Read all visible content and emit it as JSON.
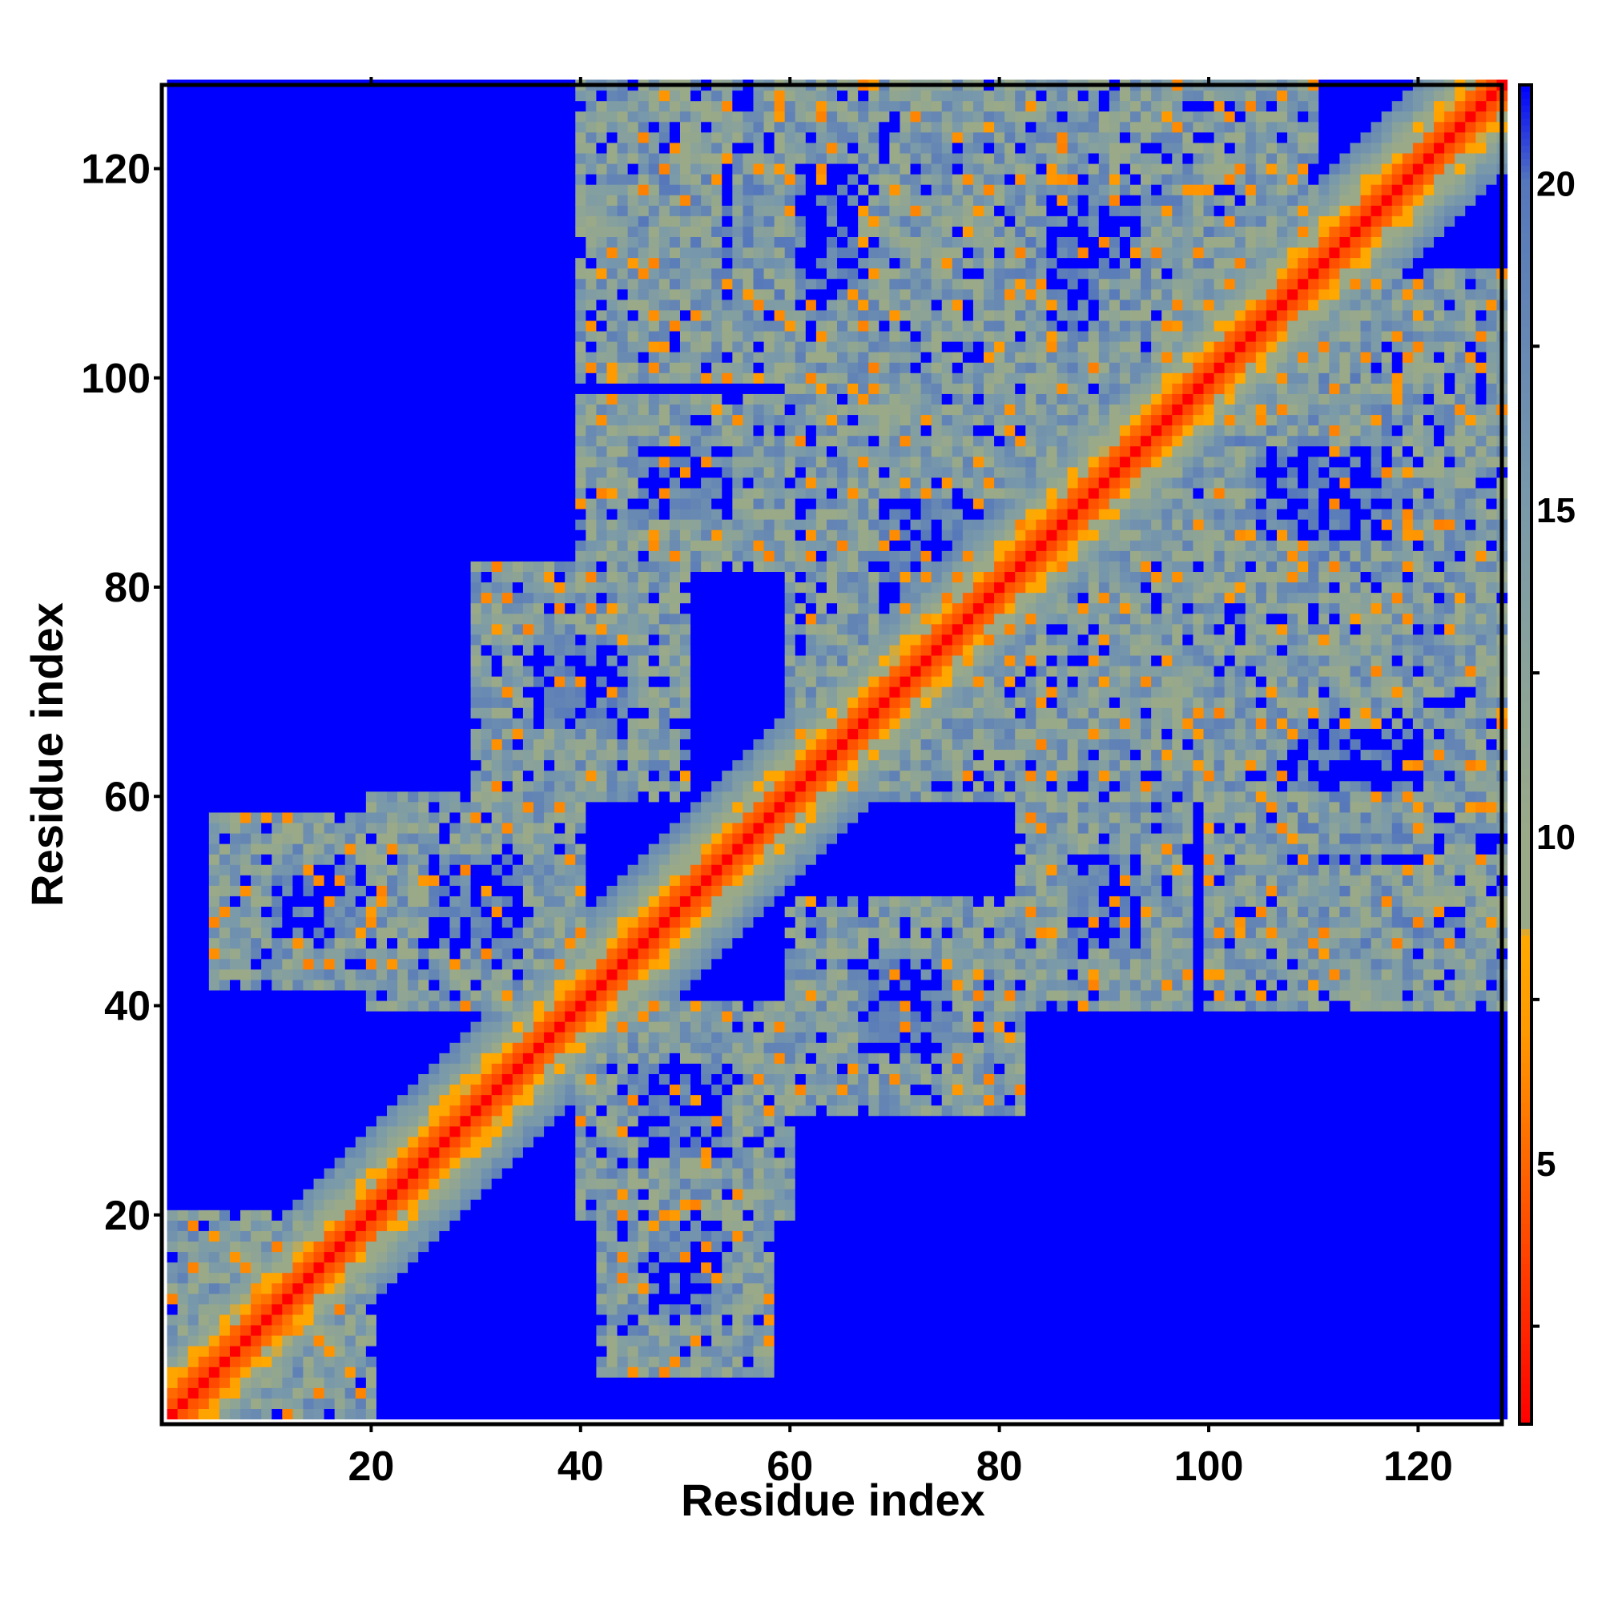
{
  "chart_data": {
    "type": "heatmap",
    "title": "",
    "xlabel": "Residue index",
    "ylabel": "Residue index",
    "xlim": [
      1,
      128
    ],
    "ylim": [
      1,
      128
    ],
    "xticks": [
      "20",
      "40",
      "60",
      "80",
      "100",
      "120"
    ],
    "yticks": [
      "20",
      "40",
      "60",
      "80",
      "100",
      "120"
    ],
    "colorbar": {
      "ticks": [
        "5",
        "10",
        "15",
        "20"
      ],
      "range": [
        1,
        21.5
      ],
      "stops": [
        {
          "value": 1,
          "color": "#ff0000"
        },
        {
          "value": 3,
          "color": "#ff3300"
        },
        {
          "value": 5,
          "color": "#ff6600"
        },
        {
          "value": 7,
          "color": "#ff9900"
        },
        {
          "value": 8.5,
          "color": "#ffaa00"
        },
        {
          "value": 8.6,
          "color": "#9aaa88"
        },
        {
          "value": 10,
          "color": "#9aaa88"
        },
        {
          "value": 15,
          "color": "#7a9aaa"
        },
        {
          "value": 20,
          "color": "#5577bb"
        },
        {
          "value": 21.5,
          "color": "#0000ff"
        }
      ]
    },
    "matrix_description": "Symmetric residue-residue distance map (Angstrom-like scale 1-21.5), minimum along diagonal, saturated blue for values above ~20",
    "contact_regions": [
      {
        "i": [
          1,
          20
        ],
        "j": [
          1,
          20
        ]
      },
      {
        "i": [
          5,
          25
        ],
        "j": [
          42,
          58
        ]
      },
      {
        "i": [
          20,
          40
        ],
        "j": [
          40,
          60
        ]
      },
      {
        "i": [
          30,
          50
        ],
        "j": [
          60,
          82
        ]
      },
      {
        "i": [
          40,
          60
        ],
        "j": [
          82,
          98
        ]
      },
      {
        "i": [
          45,
          75
        ],
        "j": [
          100,
          128
        ]
      },
      {
        "i": [
          60,
          90
        ],
        "j": [
          60,
          100
        ]
      },
      {
        "i": [
          75,
          100
        ],
        "j": [
          95,
          128
        ]
      },
      {
        "i": [
          90,
          128
        ],
        "j": [
          75,
          110
        ]
      },
      {
        "i": [
          100,
          128
        ],
        "j": [
          40,
          60
        ]
      }
    ]
  }
}
